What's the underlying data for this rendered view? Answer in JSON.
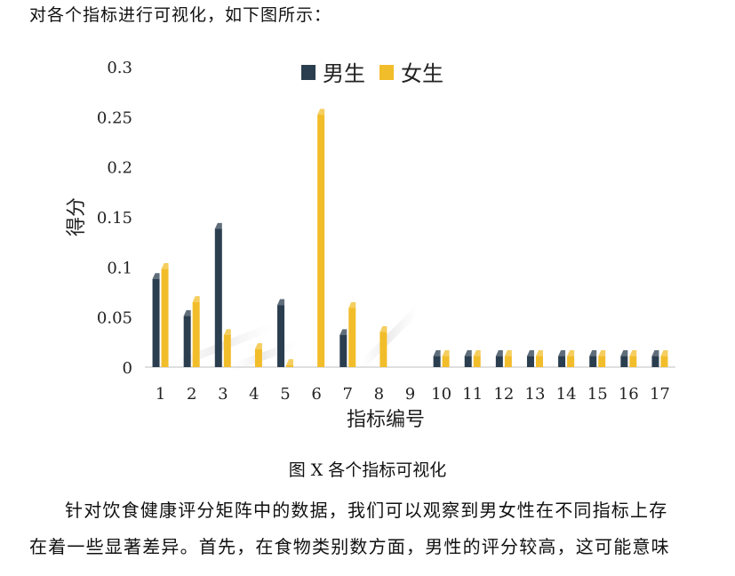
{
  "intro_text": "对各个指标进行可视化，如下图所示：",
  "caption": "图 X 各个指标可视化",
  "paragraph_line1": "针对饮食健康评分矩阵中的数据，我们可以观察到男女性在不同指标上存",
  "paragraph_line2": "在着一些显著差异。首先，在食物类别数方面，男性的评分较高，这可能意味",
  "chart_data": {
    "type": "bar",
    "title": "",
    "xlabel": "指标编号",
    "ylabel": "得分",
    "ylim": [
      0,
      0.3
    ],
    "yticks": [
      "0",
      "0.05",
      "0.1",
      "0.15",
      "0.2",
      "0.25",
      "0.3"
    ],
    "categories": [
      "1",
      "2",
      "3",
      "4",
      "5",
      "6",
      "7",
      "8",
      "9",
      "10",
      "11",
      "12",
      "13",
      "14",
      "15",
      "16",
      "17"
    ],
    "legend_position": "top-center",
    "grid": false,
    "series": [
      {
        "name": "男生",
        "color": "#2b3e4f",
        "values": [
          0.088,
          0.051,
          0.138,
          0,
          0.062,
          0,
          0.032,
          0,
          0,
          0.011,
          0.011,
          0.011,
          0.011,
          0.011,
          0.011,
          0.011,
          0.011
        ]
      },
      {
        "name": "女生",
        "color": "#f2bd2a",
        "values": [
          0.098,
          0.065,
          0.032,
          0.018,
          0.002,
          0.252,
          0.059,
          0.035,
          0,
          0.011,
          0.011,
          0.011,
          0.011,
          0.011,
          0.011,
          0.011,
          0.011
        ]
      }
    ]
  }
}
